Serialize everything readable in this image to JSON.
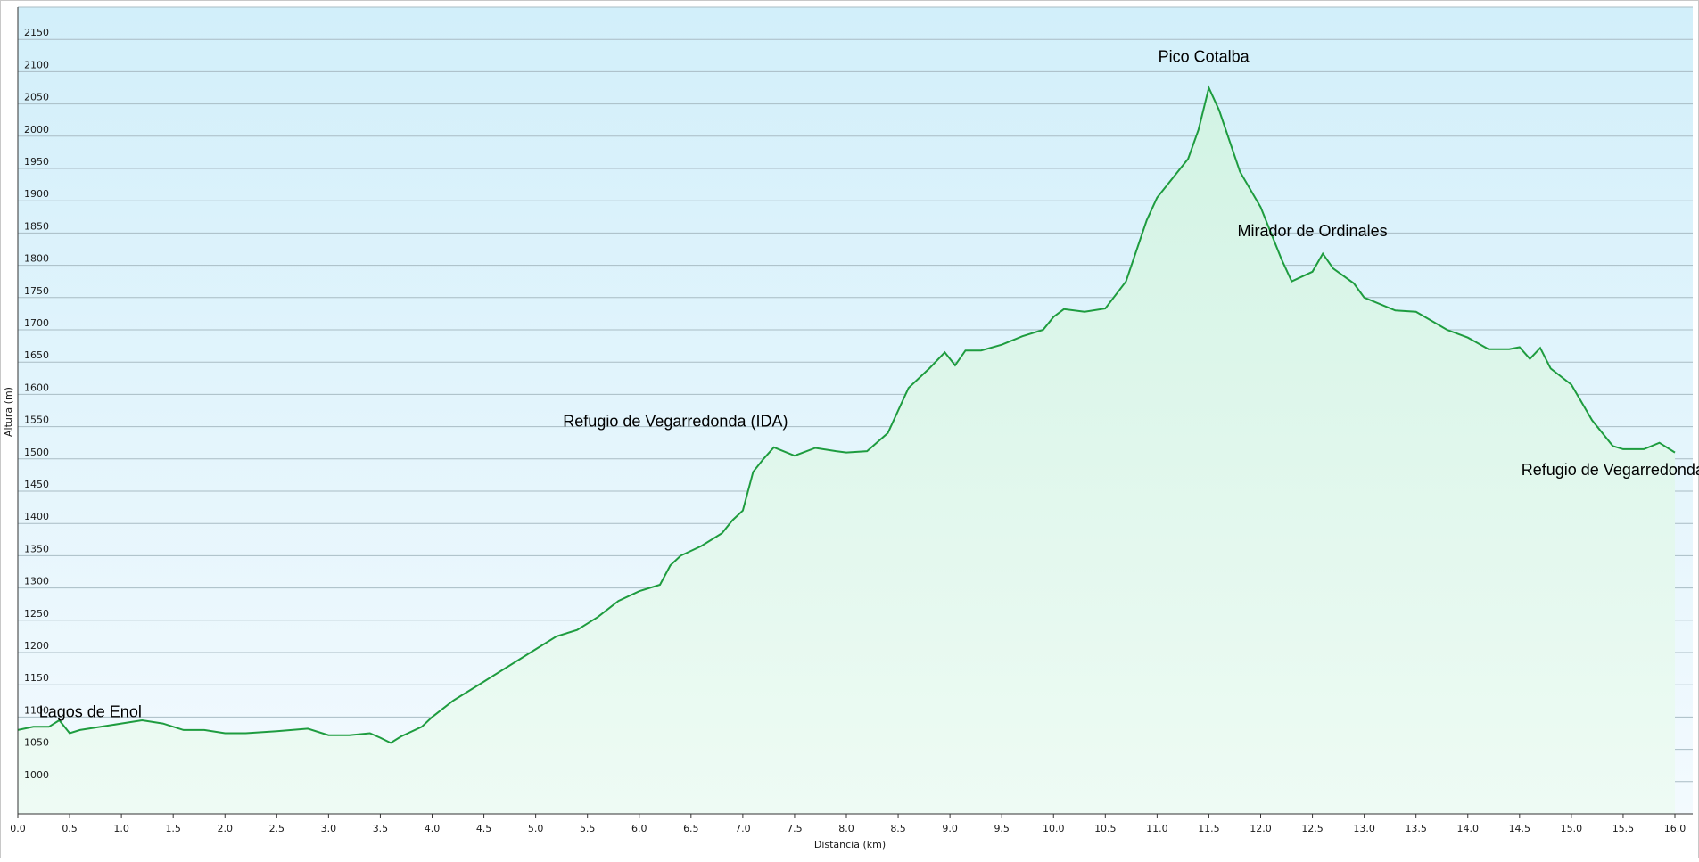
{
  "chart_data": {
    "type": "area",
    "title": "",
    "xlabel": "Distancia  (km)",
    "ylabel": "Altura (m)",
    "xlim": [
      0,
      16.0
    ],
    "ylim": [
      950,
      2200
    ],
    "grid": true,
    "colors": {
      "line": "#1e9c3f",
      "fill_top": "#d2f3e4",
      "fill_bottom": "#eefbf4",
      "bg_top": "#d2effa",
      "bg_bottom": "#f3fafe",
      "grid": "#a9bcc4"
    },
    "x_ticks": [
      "0.0",
      "0.5",
      "1.0",
      "1.5",
      "2.0",
      "2.5",
      "3.0",
      "3.5",
      "4.0",
      "4.5",
      "5.0",
      "5.5",
      "6.0",
      "6.5",
      "7.0",
      "7.5",
      "8.0",
      "8.5",
      "9.0",
      "9.5",
      "10.0",
      "10.5",
      "11.0",
      "11.5",
      "12.0",
      "12.5",
      "13.0",
      "13.5",
      "14.0",
      "14.5",
      "15.0",
      "15.5",
      "16.0"
    ],
    "y_ticks": [
      "1000",
      "1050",
      "1100",
      "1150",
      "1200",
      "1250",
      "1300",
      "1350",
      "1400",
      "1450",
      "1500",
      "1550",
      "1600",
      "1650",
      "1700",
      "1750",
      "1800",
      "1850",
      "1900",
      "1950",
      "2000",
      "2050",
      "2100",
      "2150"
    ],
    "series": [
      {
        "x": [
          0.0,
          0.15,
          0.3,
          0.4,
          0.5,
          0.6,
          0.8,
          1.0,
          1.2,
          1.4,
          1.6,
          1.8,
          2.0,
          2.2,
          2.5,
          2.8,
          3.0,
          3.2,
          3.4,
          3.5,
          3.6,
          3.7,
          3.9,
          4.0,
          4.2,
          4.5,
          4.8,
          5.0,
          5.2,
          5.4,
          5.6,
          5.8,
          6.0,
          6.2,
          6.3,
          6.4,
          6.6,
          6.8,
          6.9,
          7.0,
          7.1,
          7.2,
          7.3,
          7.5,
          7.7,
          7.9,
          8.0,
          8.2,
          8.4,
          8.6,
          8.8,
          8.95,
          9.05,
          9.15,
          9.3,
          9.5,
          9.7,
          9.9,
          10.0,
          10.1,
          10.3,
          10.5,
          10.7,
          10.9,
          11.0,
          11.2,
          11.3,
          11.4,
          11.5,
          11.6,
          11.8,
          12.0,
          12.2,
          12.3,
          12.5,
          12.6,
          12.7,
          12.9,
          13.0,
          13.3,
          13.5,
          13.8,
          14.0,
          14.2,
          14.4,
          14.5,
          14.6,
          14.7,
          14.8,
          15.0,
          15.2,
          15.4,
          15.5,
          15.7,
          15.85,
          16.0
        ],
        "y": [
          1080,
          1085,
          1085,
          1095,
          1075,
          1080,
          1085,
          1090,
          1095,
          1090,
          1080,
          1080,
          1075,
          1075,
          1078,
          1082,
          1072,
          1072,
          1075,
          1068,
          1060,
          1070,
          1085,
          1100,
          1125,
          1155,
          1185,
          1205,
          1225,
          1235,
          1255,
          1280,
          1295,
          1305,
          1335,
          1350,
          1365,
          1385,
          1405,
          1420,
          1480,
          1500,
          1518,
          1505,
          1517,
          1512,
          1510,
          1512,
          1540,
          1610,
          1640,
          1665,
          1645,
          1668,
          1668,
          1677,
          1690,
          1700,
          1720,
          1732,
          1728,
          1733,
          1775,
          1870,
          1905,
          1945,
          1965,
          2010,
          2075,
          2040,
          1945,
          1890,
          1810,
          1775,
          1790,
          1818,
          1795,
          1772,
          1750,
          1730,
          1728,
          1700,
          1688,
          1670,
          1670,
          1673,
          1655,
          1672,
          1640,
          1615,
          1560,
          1520,
          1515,
          1515,
          1525,
          1510
        ]
      }
    ],
    "annotations": [
      {
        "text": "Pico Cotalba",
        "x": 11.45,
        "y": 2115
      },
      {
        "text": "Mirador de Ordinales",
        "x": 12.5,
        "y": 1845
      },
      {
        "text": "Refugio de Vegarredonda (IDA)",
        "x": 6.35,
        "y": 1550
      },
      {
        "text": "Refugio de Vegarredonda",
        "x": 15.4,
        "y": 1475
      },
      {
        "text": "Lagos de Enol",
        "x": 0.7,
        "y": 1100
      }
    ]
  }
}
